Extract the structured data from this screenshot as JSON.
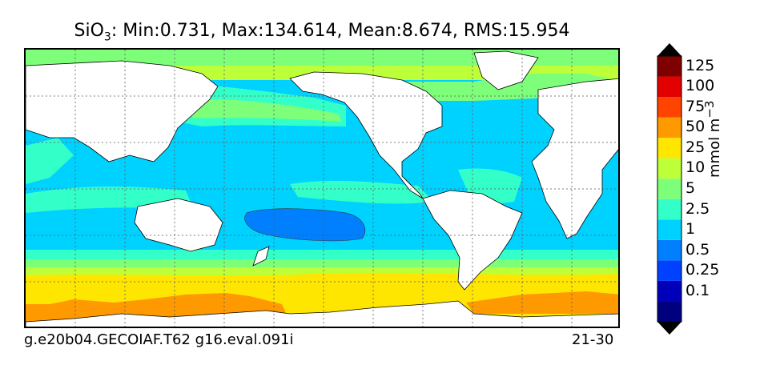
{
  "title": {
    "variable": "SiO",
    "subscript": "3",
    "stats": ": Min:0.731, Max:134.614, Mean:8.674, RMS:15.954"
  },
  "footer": {
    "run_id": "g.e20b04.GECOIAF.T62 g16.eval.091i",
    "depth_range": "21-30"
  },
  "colorbar": {
    "units_text": "mmol m",
    "units_exponent": "−3",
    "levels": [
      {
        "label": "",
        "color": "#00007f"
      },
      {
        "label": "0.1",
        "color": "#0000bb"
      },
      {
        "label": "0.25",
        "color": "#0040ff"
      },
      {
        "label": "0.5",
        "color": "#0080ff"
      },
      {
        "label": "1",
        "color": "#00d2ff"
      },
      {
        "label": "2.5",
        "color": "#33ffc8"
      },
      {
        "label": "5",
        "color": "#7dff7a"
      },
      {
        "label": "10",
        "color": "#bdff39"
      },
      {
        "label": "25",
        "color": "#ffe600"
      },
      {
        "label": "50",
        "color": "#ff9900"
      },
      {
        "label": "75",
        "color": "#ff4400"
      },
      {
        "label": "100",
        "color": "#e30000"
      },
      {
        "label": "125",
        "color": "#7f0000"
      }
    ],
    "extend": "both"
  },
  "map": {
    "projection": "cylindrical",
    "gridlines": "dotted",
    "land_color": "#ffffff"
  }
}
